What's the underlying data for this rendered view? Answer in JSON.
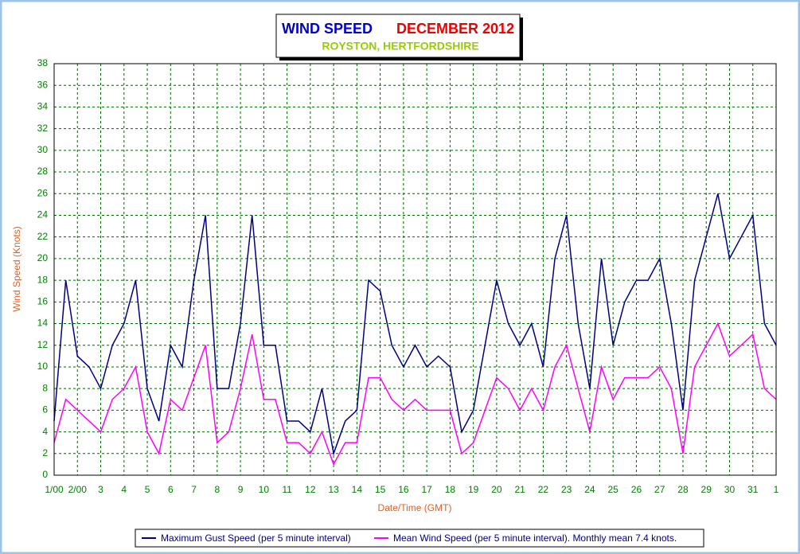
{
  "chart_data": {
    "type": "line",
    "title": "WIND SPEED",
    "title_period": "DECEMBER 2012",
    "subtitle": "ROYSTON, HERTFORDSHIRE",
    "x_label": "Date/Time (GMT)",
    "y_label": "Wind Speed (Knots)",
    "x": [
      0,
      0.5,
      1,
      1.5,
      2,
      2.5,
      3,
      3.5,
      4,
      4.5,
      5,
      5.5,
      6,
      6.5,
      7,
      7.5,
      8,
      8.5,
      9,
      9.5,
      10,
      10.5,
      11,
      11.5,
      12,
      12.5,
      13,
      13.5,
      14,
      14.5,
      15,
      15.5,
      16,
      16.5,
      17,
      17.5,
      18,
      18.5,
      19,
      19.5,
      20,
      20.5,
      21,
      21.5,
      22,
      22.5,
      23,
      23.5,
      24,
      24.5,
      25,
      25.5,
      26,
      26.5,
      27,
      27.5,
      28,
      28.5,
      29,
      29.5,
      30,
      30.5,
      31
    ],
    "series": [
      {
        "name": "Maximum Gust Speed (per 5 minute interval)",
        "color": "#000080",
        "values": [
          5,
          18,
          11,
          10,
          8,
          12,
          14,
          18,
          8,
          5,
          12,
          10,
          18,
          24,
          8,
          8,
          14,
          24,
          12,
          12,
          5,
          5,
          4,
          8,
          2,
          5,
          6,
          18,
          17,
          12,
          10,
          12,
          10,
          11,
          10,
          4,
          6,
          12,
          18,
          14,
          12,
          14,
          10,
          20,
          24,
          14,
          8,
          20,
          12,
          16,
          18,
          18,
          20,
          14,
          6,
          18,
          22,
          26,
          20,
          22,
          24,
          14,
          12
        ]
      },
      {
        "name": "Mean Wind Speed (per 5 minute interval). Monthly mean 7.4 knots.",
        "color": "#ff00ff",
        "values": [
          3,
          7,
          6,
          5,
          4,
          7,
          8,
          10,
          4,
          2,
          7,
          6,
          9,
          12,
          3,
          4,
          8,
          13,
          7,
          7,
          3,
          3,
          2,
          4,
          1,
          3,
          3,
          9,
          9,
          7,
          6,
          7,
          6,
          6,
          6,
          2,
          3,
          6,
          9,
          8,
          6,
          8,
          6,
          10,
          12,
          8,
          4,
          10,
          7,
          9,
          9,
          9,
          10,
          8,
          2,
          10,
          12,
          14,
          11,
          12,
          13,
          8,
          7
        ]
      }
    ],
    "xlim": [
      0,
      31
    ],
    "xticks": [
      {
        "value": 0,
        "label": "1/00"
      },
      {
        "value": 1,
        "label": "2/00"
      },
      {
        "value": 2,
        "label": "3"
      },
      {
        "value": 3,
        "label": "4"
      },
      {
        "value": 4,
        "label": "5"
      },
      {
        "value": 5,
        "label": "6"
      },
      {
        "value": 6,
        "label": "7"
      },
      {
        "value": 7,
        "label": "8"
      },
      {
        "value": 8,
        "label": "9"
      },
      {
        "value": 9,
        "label": "10"
      },
      {
        "value": 10,
        "label": "11"
      },
      {
        "value": 11,
        "label": "12"
      },
      {
        "value": 12,
        "label": "13"
      },
      {
        "value": 13,
        "label": "14"
      },
      {
        "value": 14,
        "label": "15"
      },
      {
        "value": 15,
        "label": "16"
      },
      {
        "value": 16,
        "label": "17"
      },
      {
        "value": 17,
        "label": "18"
      },
      {
        "value": 18,
        "label": "19"
      },
      {
        "value": 19,
        "label": "20"
      },
      {
        "value": 20,
        "label": "21"
      },
      {
        "value": 21,
        "label": "22"
      },
      {
        "value": 22,
        "label": "23"
      },
      {
        "value": 23,
        "label": "24"
      },
      {
        "value": 24,
        "label": "25"
      },
      {
        "value": 25,
        "label": "26"
      },
      {
        "value": 26,
        "label": "27"
      },
      {
        "value": 27,
        "label": "28"
      },
      {
        "value": 28,
        "label": "29"
      },
      {
        "value": 29,
        "label": "30"
      },
      {
        "value": 30,
        "label": "31"
      },
      {
        "value": 31,
        "label": "1"
      }
    ],
    "ylim": [
      0,
      38
    ],
    "yticks": [
      0,
      2,
      4,
      6,
      8,
      10,
      12,
      14,
      16,
      18,
      20,
      22,
      24,
      26,
      28,
      30,
      32,
      34,
      36,
      38
    ],
    "grid": true,
    "legend": "bottom"
  }
}
